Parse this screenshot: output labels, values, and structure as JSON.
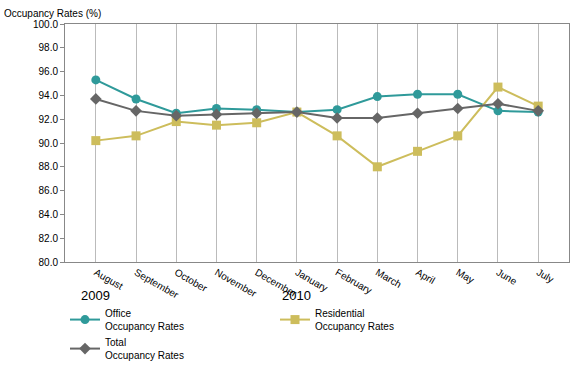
{
  "chart_data": {
    "type": "line",
    "y_label": "Occupancy Rates (%)",
    "categories": [
      "August",
      "September",
      "October",
      "November",
      "December",
      "January",
      "February",
      "March",
      "April",
      "May",
      "June",
      "July"
    ],
    "annotations": [
      {
        "text": "2009",
        "category": "August"
      },
      {
        "text": "2010",
        "category": "January"
      }
    ],
    "series": [
      {
        "name": "Office\nOccupancy Rates",
        "color": "#2f9a9a",
        "marker": "circle",
        "values": [
          95.3,
          93.7,
          92.5,
          92.9,
          92.8,
          92.6,
          92.8,
          93.9,
          94.1,
          94.1,
          92.7,
          92.6
        ]
      },
      {
        "name": "Residential\nOccupancy Rates",
        "color": "#cdbd5c",
        "marker": "square",
        "values": [
          90.2,
          90.6,
          91.8,
          91.5,
          91.7,
          92.6,
          90.6,
          88.0,
          89.3,
          90.6,
          94.7,
          93.1
        ]
      },
      {
        "name": "Total\nOccupancy Rates",
        "color": "#666666",
        "marker": "diamond",
        "values": [
          93.7,
          92.7,
          92.3,
          92.4,
          92.5,
          92.6,
          92.1,
          92.1,
          92.5,
          92.9,
          93.3,
          92.7
        ]
      }
    ],
    "ylim": [
      80,
      100
    ],
    "yticks": [
      {
        "value": 80,
        "label": "80.0"
      },
      {
        "value": 82,
        "label": "82.0"
      },
      {
        "value": 84,
        "label": "84.0"
      },
      {
        "value": 86,
        "label": "86.0"
      },
      {
        "value": 88,
        "label": "88.0"
      },
      {
        "value": 90,
        "label": "90.0"
      },
      {
        "value": 92,
        "label": "92.0"
      },
      {
        "value": 94,
        "label": "94.0"
      },
      {
        "value": 96,
        "label": "96.0"
      },
      {
        "value": 98,
        "label": "98.0"
      },
      {
        "value": 100,
        "label": "100.0"
      }
    ],
    "grid": true,
    "legend": "bottom"
  }
}
